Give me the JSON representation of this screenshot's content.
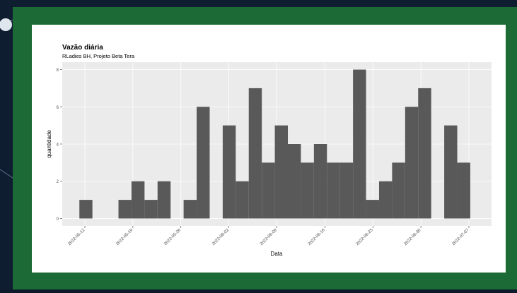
{
  "chart_data": {
    "type": "histogram",
    "title": "Vazão diária",
    "subtitle": "RLadies BH, Projeto Beta Tera",
    "x_label": "Data",
    "y_label": "quantidade",
    "bins": [
      -0.8,
      1.1,
      3.0,
      4.9,
      6.8,
      8.7,
      10.6,
      12.5,
      14.4,
      16.3,
      18.2,
      20.1,
      22.0,
      23.9,
      25.8,
      27.7,
      29.6,
      31.5,
      33.4,
      35.3,
      37.2,
      39.1,
      41.0,
      42.9,
      44.8,
      46.7,
      48.6,
      50.5,
      52.4,
      54.3,
      56.2
    ],
    "values": [
      1,
      0,
      0,
      1,
      2,
      1,
      2,
      0,
      1,
      6,
      0,
      5,
      2,
      7,
      3,
      5,
      4,
      3,
      4,
      3,
      3,
      8,
      1,
      2,
      3,
      6,
      7,
      0,
      5,
      3
    ],
    "color": "#595959",
    "xlim": [
      -3.3,
      59.3
    ],
    "xticks": [
      {
        "value": 0,
        "label": "2022-05-12"
      },
      {
        "value": 7,
        "label": "2022-05-19"
      },
      {
        "value": 14,
        "label": "2022-05-26"
      },
      {
        "value": 21,
        "label": "2022-06-02"
      },
      {
        "value": 28,
        "label": "2022-06-09"
      },
      {
        "value": 35,
        "label": "2022-06-16"
      },
      {
        "value": 42,
        "label": "2022-06-23"
      },
      {
        "value": 49,
        "label": "2022-06-30"
      },
      {
        "value": 56,
        "label": "2022-07-07"
      }
    ],
    "ylim": [
      -0.4,
      8.4
    ],
    "yticks": [
      0,
      2,
      4,
      6,
      8
    ],
    "grid": true
  }
}
